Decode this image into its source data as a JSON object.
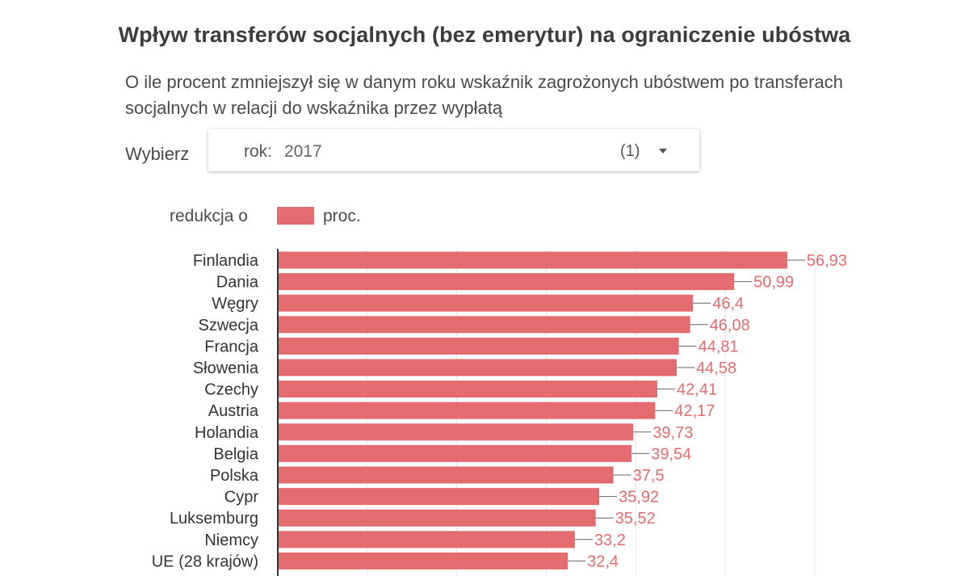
{
  "header": {
    "title": "Wpływ transferów socjalnych (bez emerytur) na ograniczenie ubóstwa",
    "subtitle": "O ile procent zmniejszył się w danym roku wskaźnik zagrożonych ubóstwem po transferach socjalnych w relacji do wskaźnika przez wypłatą"
  },
  "filter": {
    "label": "Wybierz",
    "key": "rok:",
    "value": "2017",
    "count": "(1)",
    "arrow_icon": "chevron-down-icon"
  },
  "legend": {
    "title": "redukcja o",
    "label": "proc."
  },
  "colors": {
    "bar": "#e46c6e",
    "value_label": "#e46c6e",
    "grid": "#e6e6e6",
    "axis": "#333333"
  },
  "chart_data": {
    "type": "bar",
    "orientation": "horizontal",
    "categories": [
      "Finlandia",
      "Dania",
      "Węgry",
      "Szwecja",
      "Francja",
      "Słowenia",
      "Czechy",
      "Austria",
      "Holandia",
      "Belgia",
      "Polska",
      "Cypr",
      "Luksemburg",
      "Niemcy",
      "UE (28 krajów)"
    ],
    "labels": [
      "56,93",
      "50,99",
      "46,4",
      "46,08",
      "44,81",
      "44,58",
      "42,41",
      "42,17",
      "39,73",
      "39,54",
      "37,5",
      "35,92",
      "35,52",
      "33,2",
      "32,4"
    ],
    "series": [
      {
        "name": "proc.",
        "values": [
          56.93,
          50.99,
          46.4,
          46.08,
          44.81,
          44.58,
          42.41,
          42.17,
          39.73,
          39.54,
          37.5,
          35.92,
          35.52,
          33.2,
          32.4
        ]
      }
    ],
    "xlim": [
      0,
      60
    ],
    "grid": true,
    "legend_position": "top-left"
  }
}
